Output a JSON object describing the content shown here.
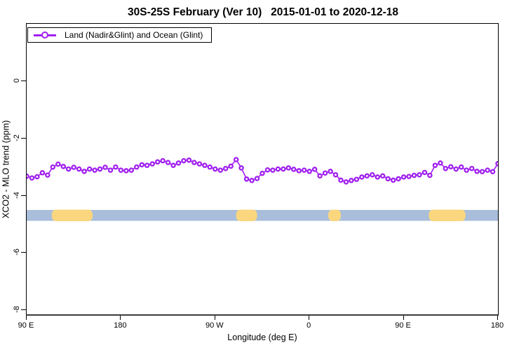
{
  "header": {
    "title": "30S-25S February (Ver 10)   2015-01-01 to 2020-12-18"
  },
  "legend": {
    "label": "Land (Nadir&Glint) and Ocean (Glint)"
  },
  "colors": {
    "series_purple": "#A020F0",
    "land_yellow": "#FAD77E",
    "ocean_blue": "#A9BEDB",
    "axis_black": "#000000"
  },
  "chart_data": {
    "type": "line",
    "title": "30S-25S February (Ver 10)   2015-01-01 to 2020-12-18",
    "xlabel": "Longitude (deg E)",
    "ylabel": "XCO2 - MLO trend (ppm)",
    "xlim": [
      90,
      540
    ],
    "ylim": [
      -8.2,
      2.0
    ],
    "grid": false,
    "legend_position": "top-left",
    "x_axis": {
      "label": "Longitude (deg E)",
      "ticks": [
        {
          "lon": 90,
          "label": "90 E"
        },
        {
          "lon": 180,
          "label": "180"
        },
        {
          "lon": 270,
          "label": "90 W"
        },
        {
          "lon": 360,
          "label": "0"
        },
        {
          "lon": 450,
          "label": "90 E"
        },
        {
          "lon": 540,
          "label": "180"
        }
      ]
    },
    "y_axis": {
      "label": "XCO2 - MLO trend (ppm)",
      "ticks": [
        {
          "v": 0,
          "label": "0"
        },
        {
          "v": -2,
          "label": "-2"
        },
        {
          "v": -4,
          "label": "-4"
        },
        {
          "v": -6,
          "label": "-6"
        },
        {
          "v": -8,
          "label": "-8"
        }
      ]
    },
    "series": [
      {
        "name": "Land (Nadir&Glint) and Ocean (Glint)",
        "color": "#A020F0",
        "marker": "open-circle",
        "x_start": 90,
        "x_step": 5,
        "values": [
          -3.32,
          -3.38,
          -3.34,
          -3.2,
          -3.28,
          -3.0,
          -2.9,
          -2.98,
          -3.07,
          -3.01,
          -3.07,
          -3.15,
          -3.07,
          -3.11,
          -3.07,
          -3.01,
          -3.11,
          -3.0,
          -3.11,
          -3.13,
          -3.11,
          -3.0,
          -2.92,
          -2.94,
          -2.89,
          -2.82,
          -2.78,
          -2.84,
          -2.94,
          -2.86,
          -2.78,
          -2.76,
          -2.84,
          -2.89,
          -2.94,
          -3.0,
          -3.07,
          -3.11,
          -3.05,
          -2.97,
          -2.74,
          -3.03,
          -3.42,
          -3.47,
          -3.4,
          -3.22,
          -3.1,
          -3.11,
          -3.07,
          -3.07,
          -3.03,
          -3.08,
          -3.13,
          -3.11,
          -3.15,
          -3.08,
          -3.31,
          -3.21,
          -3.15,
          -3.27,
          -3.46,
          -3.52,
          -3.47,
          -3.43,
          -3.35,
          -3.31,
          -3.27,
          -3.35,
          -3.31,
          -3.41,
          -3.46,
          -3.41,
          -3.35,
          -3.33,
          -3.29,
          -3.27,
          -3.19,
          -3.29,
          -2.94,
          -2.86,
          -3.05,
          -2.99,
          -3.07,
          -3.0,
          -3.11,
          -3.05,
          -3.15,
          -3.16,
          -3.11,
          -3.16,
          -2.88
        ]
      }
    ],
    "surface_band": {
      "y_top": -4.5,
      "y_bottom": -4.88,
      "ocean_color": "#A9BEDB",
      "land_color": "#FAD77E",
      "segments": [
        {
          "surface": "ocean",
          "from": 90,
          "to": 114
        },
        {
          "surface": "land",
          "from": 114,
          "to": 153
        },
        {
          "surface": "ocean",
          "from": 153,
          "to": 290
        },
        {
          "surface": "land",
          "from": 290,
          "to": 310
        },
        {
          "surface": "ocean",
          "from": 310,
          "to": 378
        },
        {
          "surface": "land",
          "from": 378,
          "to": 390
        },
        {
          "surface": "ocean",
          "from": 390,
          "to": 474
        },
        {
          "surface": "land",
          "from": 474,
          "to": 509
        },
        {
          "surface": "ocean",
          "from": 509,
          "to": 540
        }
      ]
    }
  }
}
